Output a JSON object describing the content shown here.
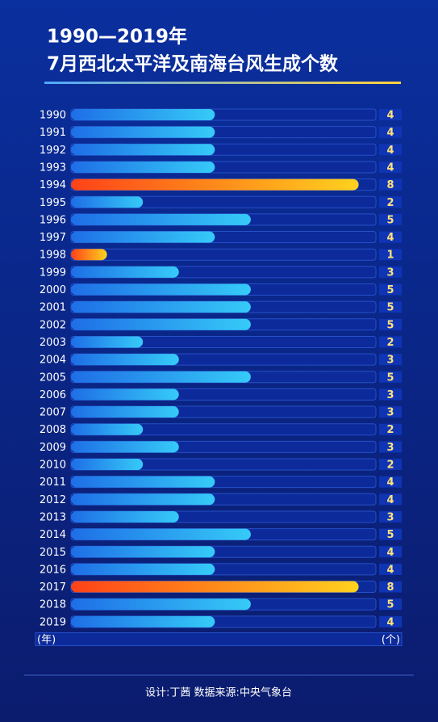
{
  "chart_data": {
    "type": "bar",
    "orientation": "horizontal",
    "title": "1990—2019年",
    "subtitle": "7月西北太平洋及南海台风生成个数",
    "categories": [
      "1990",
      "1991",
      "1992",
      "1993",
      "1994",
      "1995",
      "1996",
      "1997",
      "1998",
      "1999",
      "2000",
      "2001",
      "2002",
      "2003",
      "2004",
      "2005",
      "2006",
      "2007",
      "2008",
      "2009",
      "2010",
      "2011",
      "2012",
      "2013",
      "2014",
      "2015",
      "2016",
      "2017",
      "2018",
      "2019"
    ],
    "values": [
      4,
      4,
      4,
      4,
      8,
      2,
      5,
      4,
      1,
      3,
      5,
      5,
      5,
      2,
      3,
      5,
      3,
      3,
      2,
      3,
      2,
      4,
      4,
      3,
      5,
      4,
      4,
      8,
      5,
      4
    ],
    "colors": [
      "#36cbf8",
      "#36cbf8",
      "#36cbf8",
      "#36cbf8",
      "#ffa41c",
      "#36cbf8",
      "#36cbf8",
      "#36cbf8",
      "#ffa41c",
      "#36cbf8",
      "#36cbf8",
      "#36cbf8",
      "#36cbf8",
      "#36cbf8",
      "#36cbf8",
      "#36cbf8",
      "#36cbf8",
      "#36cbf8",
      "#36cbf8",
      "#36cbf8",
      "#36cbf8",
      "#36cbf8",
      "#36cbf8",
      "#36cbf8",
      "#36cbf8",
      "#36cbf8",
      "#36cbf8",
      "#ffa41c",
      "#36cbf8",
      "#36cbf8"
    ],
    "y_axis_label": "(年)",
    "x_axis_label": "(个)",
    "footer": "设计:丁茜    数据来源:中央气象台"
  }
}
